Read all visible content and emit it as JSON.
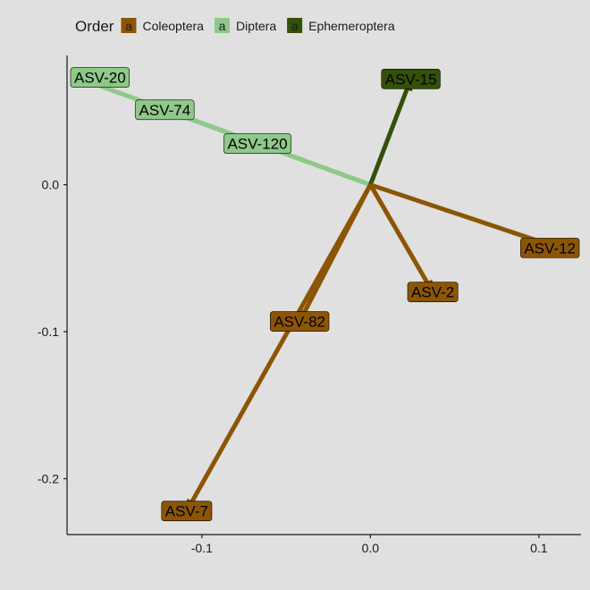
{
  "chart_data": {
    "type": "biplot-arrows",
    "title": "",
    "xlabel": "",
    "ylabel": "",
    "xlim": [
      -0.18,
      0.125
    ],
    "ylim": [
      -0.238,
      0.088
    ],
    "grid": false,
    "legend": {
      "title": "Order",
      "placement": "top-left",
      "entries": [
        {
          "name": "Coleoptera",
          "color": "#8c5504",
          "symbol": "a"
        },
        {
          "name": "Diptera",
          "color": "#8fc98a",
          "symbol": "a"
        },
        {
          "name": "Ephemeroptera",
          "color": "#335207",
          "symbol": "a"
        }
      ]
    },
    "x_ticks": [
      {
        "value": -0.1,
        "label": "-0.1"
      },
      {
        "value": 0.0,
        "label": "0.0"
      },
      {
        "value": 0.1,
        "label": "0.1"
      }
    ],
    "y_ticks": [
      {
        "value": 0.0,
        "label": "0.0"
      },
      {
        "value": -0.1,
        "label": "-0.1"
      },
      {
        "value": -0.2,
        "label": "-0.2"
      }
    ],
    "origin": [
      0,
      0
    ],
    "arrows": [
      {
        "label": "ASV-20",
        "order": "Diptera",
        "x": -0.174,
        "y": 0.073
      },
      {
        "label": "ASV-74",
        "order": "Diptera",
        "x": -0.122,
        "y": 0.051
      },
      {
        "label": "ASV-120",
        "order": "Diptera",
        "x": -0.067,
        "y": 0.028
      },
      {
        "label": "ASV-15",
        "order": "Ephemeroptera",
        "x": 0.024,
        "y": 0.072
      },
      {
        "label": "ASV-12",
        "order": "Coleoptera",
        "x": 0.112,
        "y": -0.043
      },
      {
        "label": "ASV-2",
        "order": "Coleoptera",
        "x": 0.037,
        "y": -0.073
      },
      {
        "label": "ASV-82",
        "order": "Coleoptera",
        "x": -0.042,
        "y": -0.093
      },
      {
        "label": "ASV-7",
        "order": "Coleoptera",
        "x": -0.109,
        "y": -0.222
      }
    ]
  }
}
